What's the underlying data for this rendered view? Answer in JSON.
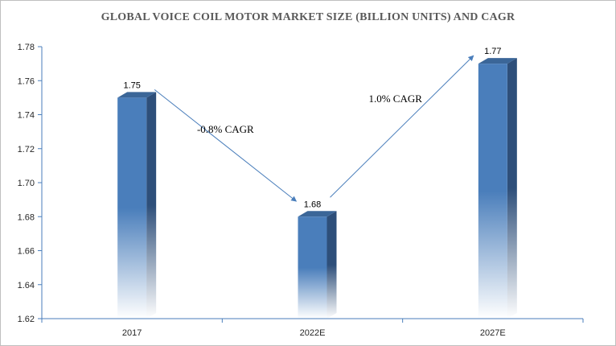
{
  "chart_data": {
    "type": "bar",
    "title": "GLOBAL VOICE COIL MOTOR MARKET SIZE (BILLION UNITS) AND CAGR",
    "categories": [
      "2017",
      "2022E",
      "2027E"
    ],
    "values": [
      1.75,
      1.68,
      1.77
    ],
    "data_labels": [
      "1.75",
      "1.68",
      "1.77"
    ],
    "ylim": [
      1.62,
      1.78
    ],
    "yticks": [
      "1.62",
      "1.64",
      "1.66",
      "1.68",
      "1.70",
      "1.72",
      "1.74",
      "1.76",
      "1.78"
    ],
    "grid": false,
    "annotations": [
      {
        "text": "-0.8% CAGR",
        "from": "2017",
        "to": "2022E"
      },
      {
        "text": "1.0% CAGR",
        "from": "2022E",
        "to": "2027E"
      }
    ],
    "colors": {
      "bar_front": "#4a7ebb",
      "bar_side": "#2e4f7a",
      "bar_top": "#3b6698",
      "arrow": "#4a7ebb",
      "axis": "#4a7ebb"
    }
  }
}
